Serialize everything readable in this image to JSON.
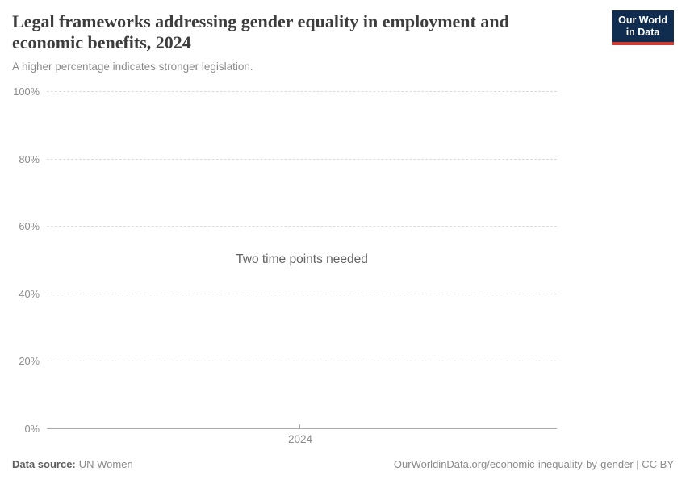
{
  "header": {
    "title": "Legal frameworks addressing gender equality in employment and economic benefits, 2024",
    "subtitle": "A higher percentage indicates stronger legislation.",
    "logo_line1": "Our World",
    "logo_line2": "in Data"
  },
  "colors": {
    "logo_background": "#102d50",
    "logo_stripe": "#cf3b33",
    "title_text": "#3d3d3d",
    "axis_text": "#8c8c8c",
    "gridline": "#dcdcdc",
    "axis_line": "#adadad"
  },
  "chart_data": {
    "type": "line",
    "title": "Legal frameworks addressing gender equality in employment and economic benefits, 2024",
    "subtitle": "A higher percentage indicates stronger legislation.",
    "xlabel": "",
    "ylabel": "",
    "ylim": [
      0,
      100
    ],
    "yticks": [
      0,
      20,
      40,
      60,
      80,
      100
    ],
    "ytick_labels_top_to_bottom": [
      "100%",
      "80%",
      "60%",
      "40%",
      "20%",
      "0%"
    ],
    "xticks": [
      2024
    ],
    "xtick_labels": [
      "2024"
    ],
    "grid": "horizontal-dashed",
    "legend_position": "none",
    "series": [],
    "empty_state_message": "Two time points needed"
  },
  "footer": {
    "datasource_label": "Data source:",
    "datasource_value": "UN Women",
    "attribution": "OurWorldinData.org/economic-inequality-by-gender | CC BY"
  }
}
